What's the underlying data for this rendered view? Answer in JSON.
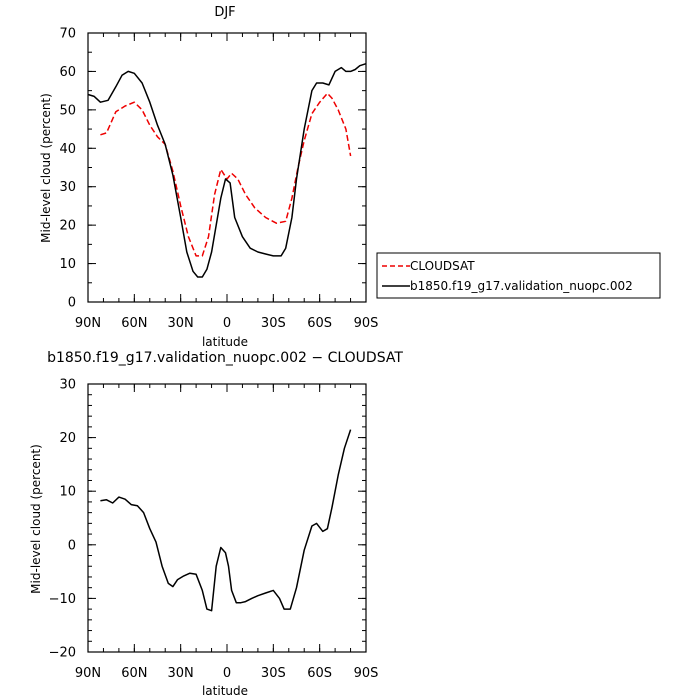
{
  "chart_data": [
    {
      "type": "line",
      "title": "DJF",
      "xlabel": "latitude",
      "ylabel": "Mid-level cloud (percent)",
      "xlim": [
        90,
        -90
      ],
      "ylim": [
        0,
        70
      ],
      "xticks": [
        {
          "v": 90,
          "label": "90N"
        },
        {
          "v": 60,
          "label": "60N"
        },
        {
          "v": 30,
          "label": "30N"
        },
        {
          "v": 0,
          "label": "0"
        },
        {
          "v": -30,
          "label": "30S"
        },
        {
          "v": -60,
          "label": "60S"
        },
        {
          "v": -90,
          "label": "90S"
        }
      ],
      "yticks": [
        0,
        10,
        20,
        30,
        40,
        50,
        60,
        70
      ],
      "legend_position": "right",
      "grid": false,
      "series": [
        {
          "name": "CLOUDSAT",
          "color": "#ee0000",
          "dash": true,
          "x": [
            82,
            78,
            72,
            66,
            60,
            55,
            50,
            45,
            40,
            35,
            30,
            25,
            20,
            16,
            12,
            8,
            4,
            0,
            -3,
            -7,
            -12,
            -18,
            -25,
            -32,
            -38,
            -42,
            -46,
            -50,
            -55,
            -60,
            -65,
            -68,
            -72,
            -77,
            -80
          ],
          "y": [
            43.5,
            44,
            49.5,
            51,
            52,
            50,
            46,
            43,
            41,
            34,
            25,
            17,
            12,
            12,
            17,
            28,
            34.5,
            32,
            33.5,
            32,
            28,
            24.5,
            22,
            20.5,
            21,
            27,
            35,
            42,
            49,
            52,
            54.3,
            53,
            50,
            45,
            38
          ]
        },
        {
          "name": "b1850.f19_g17.validation_nuopc.002",
          "color": "#000000",
          "dash": false,
          "x": [
            90,
            86,
            82,
            77,
            72,
            68,
            64,
            60,
            55,
            50,
            45,
            40,
            35,
            30,
            26,
            22,
            19,
            16,
            13,
            10,
            7,
            4,
            1,
            -2,
            -5,
            -10,
            -15,
            -20,
            -25,
            -30,
            -35,
            -38,
            -42,
            -45,
            -50,
            -55,
            -58,
            -62,
            -66,
            -70,
            -74,
            -77,
            -80,
            -83,
            -86,
            -90
          ],
          "y": [
            54,
            53.5,
            52,
            52.5,
            56,
            59,
            60,
            59.5,
            57,
            52,
            46,
            41,
            33,
            22,
            13,
            8,
            6.5,
            6.5,
            8.5,
            13,
            20,
            27,
            32,
            31,
            22,
            17,
            14,
            13,
            12.5,
            12,
            12,
            14,
            22,
            32,
            45,
            55,
            57,
            57,
            56.5,
            60,
            61,
            60,
            60,
            60.5,
            61.5,
            62
          ]
        }
      ]
    },
    {
      "type": "line",
      "title": "b1850.f19_g17.validation_nuopc.002 − CLOUDSAT",
      "xlabel": "latitude",
      "ylabel": "Mid-level cloud (percent)",
      "xlim": [
        90,
        -90
      ],
      "ylim": [
        -20,
        30
      ],
      "xticks": [
        {
          "v": 90,
          "label": "90N"
        },
        {
          "v": 60,
          "label": "60N"
        },
        {
          "v": 30,
          "label": "30N"
        },
        {
          "v": 0,
          "label": "0"
        },
        {
          "v": -30,
          "label": "30S"
        },
        {
          "v": -60,
          "label": "60S"
        },
        {
          "v": -90,
          "label": "90S"
        }
      ],
      "yticks": [
        -20,
        -10,
        0,
        10,
        20,
        30
      ],
      "grid": false,
      "series": [
        {
          "color": "#000000",
          "dash": false,
          "x": [
            82,
            78,
            74,
            70,
            66,
            62,
            58,
            54,
            50,
            46,
            42,
            38,
            35,
            32,
            28,
            24,
            20,
            16,
            13,
            10,
            7,
            4,
            1,
            -1,
            -3,
            -6,
            -9,
            -12,
            -16,
            -20,
            -25,
            -30,
            -34,
            -37,
            -41,
            -45,
            -50,
            -55,
            -58,
            -62,
            -65,
            -68,
            -72,
            -76,
            -80
          ],
          "y": [
            8.2,
            8.4,
            7.8,
            8.9,
            8.5,
            7.5,
            7.3,
            6,
            3,
            0.5,
            -4,
            -7.2,
            -7.8,
            -6.5,
            -5.8,
            -5.3,
            -5.5,
            -8.5,
            -12,
            -12.3,
            -4,
            -0.5,
            -1.5,
            -4,
            -8.5,
            -10.8,
            -10.8,
            -10.6,
            -10,
            -9.5,
            -9,
            -8.5,
            -10,
            -12,
            -12,
            -8,
            -1,
            3.5,
            4,
            2.5,
            3,
            7,
            13,
            18,
            21.5
          ]
        }
      ]
    }
  ]
}
